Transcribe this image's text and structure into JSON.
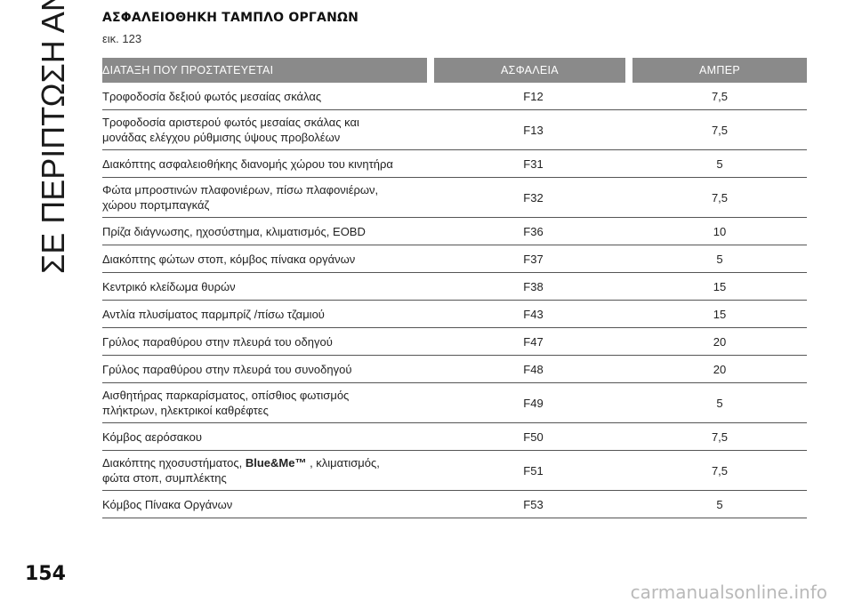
{
  "side_title": "ΣΕ ΠΕΡΙΠΤΩΣΗ ΑΝΑΓΚΗΣ",
  "heading": "ΑΣΦΑΛΕΙΟΘΗΚΗ ΤΑΜΠΛΟ ΟΡΓΑΝΩΝ",
  "figure_ref": "εικ. 123",
  "table": {
    "headers": {
      "protected": "ΔΙΑΤΑΞΗ ΠΟΥ ΠΡΟΣΤΑΤΕΥΕΤΑΙ",
      "fuse": "ΑΣΦΑΛΕΙΑ",
      "amp": "ΑΜΠΕΡ"
    },
    "rows": [
      {
        "desc1": "Τροφοδοσία δεξιού φωτός μεσαίας σκάλας",
        "fuse": "F12",
        "amp": "7,5"
      },
      {
        "desc1": "Τροφοδοσία αριστερού φωτός μεσαίας σκάλας και",
        "desc2": "μονάδας ελέγχου ρύθμισης ύψους προβολέων",
        "fuse": "F13",
        "amp": "7,5"
      },
      {
        "desc1": "Διακόπτης ασφαλειοθήκης διανομής χώρου του κινητήρα",
        "fuse": "F31",
        "amp": "5"
      },
      {
        "desc1": "Φώτα μπροστινών πλαφονιέρων, πίσω πλαφονιέρων,",
        "desc2": "χώρου πορτμπαγκάζ",
        "fuse": "F32",
        "amp": "7,5"
      },
      {
        "desc1": "Πρίζα διάγνωσης, ηχοσύστημα, κλιματισμός, EOBD",
        "fuse": "F36",
        "amp": "10"
      },
      {
        "desc1": "Διακόπτης φώτων στοπ, κόμβος πίνακα οργάνων",
        "fuse": "F37",
        "amp": "5"
      },
      {
        "desc1": "Κεντρικό κλείδωμα θυρών",
        "fuse": "F38",
        "amp": "15"
      },
      {
        "desc1": "Αντλία πλυσίματος παρμπρίζ /πίσω τζαμιού",
        "fuse": "F43",
        "amp": "15"
      },
      {
        "desc1": "Γρύλος παραθύρου στην πλευρά του οδηγού",
        "fuse": "F47",
        "amp": "20"
      },
      {
        "desc1": "Γρύλος παραθύρου στην πλευρά του συνοδηγού",
        "fuse": "F48",
        "amp": "20"
      },
      {
        "desc1": "Αισθητήρας παρκαρίσματος, οπίσθιος φωτισμός",
        "desc2": "πλήκτρων, ηλεκτρικοί καθρέφτες",
        "fuse": "F49",
        "amp": "5"
      },
      {
        "desc1": "Κόμβος αερόσακου",
        "fuse": "F50",
        "amp": "7,5"
      },
      {
        "desc1_pre": "Διακόπτης ηχοσυστήματος, ",
        "desc1_bold": "Blue&Me™",
        "desc1_post": " , κλιματισμός,",
        "desc2": "φώτα στοπ, συμπλέκτης",
        "fuse": "F51",
        "amp": "7,5"
      },
      {
        "desc1": "Κόμβος Πίνακα Οργάνων",
        "fuse": "F53",
        "amp": "5"
      }
    ]
  },
  "page_number": "154",
  "watermark": "carmanualsonline.info"
}
